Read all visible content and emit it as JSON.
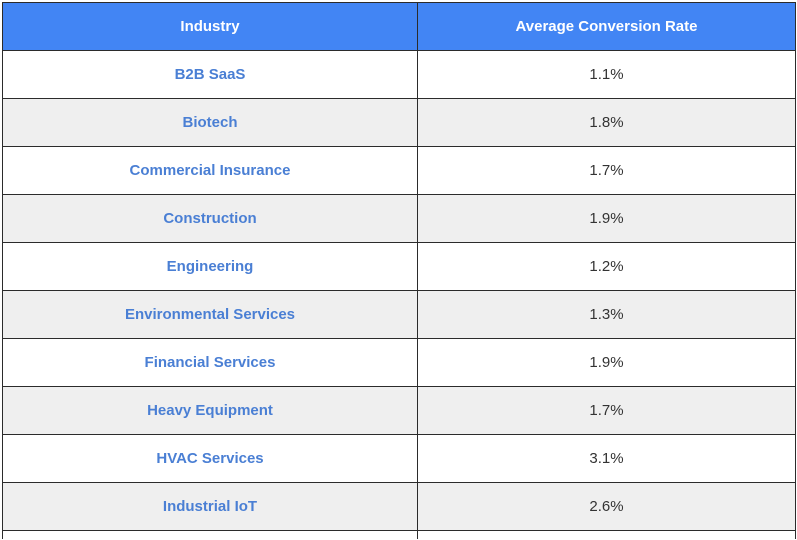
{
  "table": {
    "headers": {
      "industry": "Industry",
      "rate": "Average Conversion Rate"
    },
    "rows": [
      {
        "industry": "B2B SaaS",
        "rate": "1.1%"
      },
      {
        "industry": "Biotech",
        "rate": "1.8%"
      },
      {
        "industry": "Commercial Insurance",
        "rate": "1.7%"
      },
      {
        "industry": "Construction",
        "rate": "1.9%"
      },
      {
        "industry": "Engineering",
        "rate": "1.2%"
      },
      {
        "industry": "Environmental Services",
        "rate": "1.3%"
      },
      {
        "industry": "Financial Services",
        "rate": "1.9%"
      },
      {
        "industry": "Heavy Equipment",
        "rate": "1.7%"
      },
      {
        "industry": "HVAC Services",
        "rate": "3.1%"
      },
      {
        "industry": "Industrial IoT",
        "rate": "2.6%"
      }
    ]
  },
  "colors": {
    "header_bg": "#4285f4",
    "header_text": "#ffffff",
    "industry_text": "#4a7fd4",
    "alt_row_bg": "#efefef"
  }
}
